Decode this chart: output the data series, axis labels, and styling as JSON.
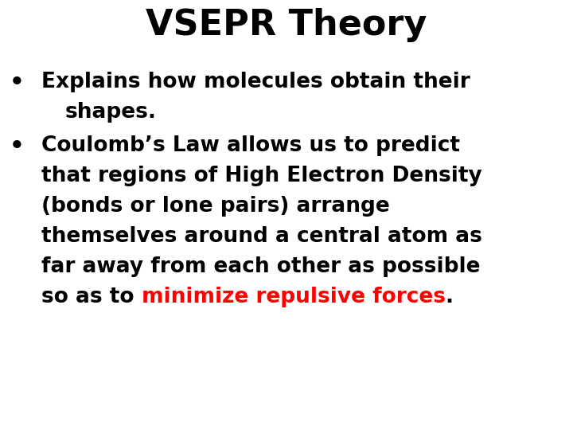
{
  "title": "VSEPR Theory",
  "title_fontsize": 32,
  "title_color": "#000000",
  "background_color": "#ffffff",
  "bullet1_line1": "Explains how molecules obtain their",
  "bullet1_line2": "shapes.",
  "bullet2_line1": "Coulomb’s Law allows us to predict",
  "bullet2_line2": "that regions of High Electron Density",
  "bullet2_line3": "(bonds or lone pairs) arrange",
  "bullet2_line4": "themselves around a central atom as",
  "bullet2_line5": "far away from each other as possible",
  "bullet2_line6_black1": "so as to ",
  "bullet2_line6_red": "minimize repulsive forces",
  "bullet2_line6_black2": ".",
  "body_fontsize": 19,
  "body_color": "#000000",
  "red_color": "#ff0000",
  "bullet_char": "•",
  "fig_width": 7.2,
  "fig_height": 5.4,
  "dpi": 100
}
